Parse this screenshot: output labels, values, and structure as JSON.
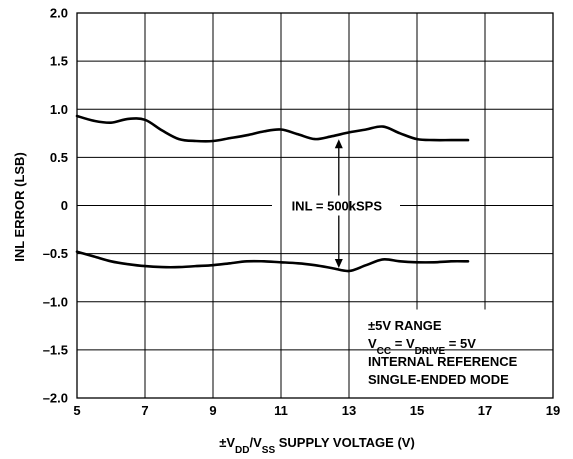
{
  "chart_data": {
    "type": "line",
    "xlabel": {
      "pre": "±V",
      "sub1": "DD",
      "mid": "/V",
      "sub2": "SS",
      "post": " SUPPLY VOLTAGE (V)"
    },
    "ylabel": "INL ERROR (LSB)",
    "xlim": [
      5,
      19
    ],
    "ylim": [
      -2.0,
      2.0
    ],
    "x_ticks": [
      5,
      7,
      9,
      11,
      13,
      15,
      17,
      19
    ],
    "y_ticks": [
      2.0,
      1.5,
      1.0,
      0.5,
      0,
      -0.5,
      -1.0,
      -1.5,
      -2.0
    ],
    "y_tick_labels": [
      "2.0",
      "1.5",
      "1.0",
      "0.5",
      "0",
      "–0.5",
      "–1.0",
      "–1.5",
      "–2.0"
    ],
    "grid": true,
    "series": [
      {
        "x": [
          5,
          5.5,
          6,
          6.5,
          7,
          7.5,
          8,
          8.5,
          9,
          9.5,
          10,
          10.5,
          11,
          11.5,
          12,
          12.5,
          13,
          13.5,
          14,
          14.5,
          15,
          15.5,
          16,
          16.5
        ],
        "values": [
          0.93,
          0.88,
          0.86,
          0.9,
          0.89,
          0.78,
          0.69,
          0.67,
          0.67,
          0.7,
          0.73,
          0.77,
          0.79,
          0.74,
          0.69,
          0.72,
          0.76,
          0.79,
          0.82,
          0.75,
          0.69,
          0.68,
          0.68,
          0.68
        ]
      },
      {
        "x": [
          5,
          5.5,
          6,
          6.5,
          7,
          7.5,
          8,
          8.5,
          9,
          9.5,
          10,
          10.5,
          11,
          11.5,
          12,
          12.5,
          13,
          13.5,
          14,
          14.5,
          15,
          15.5,
          16,
          16.5
        ],
        "values": [
          -0.48,
          -0.53,
          -0.58,
          -0.61,
          -0.63,
          -0.64,
          -0.64,
          -0.63,
          -0.62,
          -0.6,
          -0.58,
          -0.58,
          -0.59,
          -0.6,
          -0.62,
          -0.65,
          -0.68,
          -0.62,
          -0.56,
          -0.58,
          -0.59,
          -0.59,
          -0.58,
          -0.58
        ]
      }
    ],
    "annotation": {
      "label": "INL = 500kSPS",
      "arrow_x": 12.7,
      "arrow_from": 0.72,
      "arrow_to": -0.68,
      "label_y": 0
    },
    "conditions": {
      "line1": "±5V RANGE",
      "line2": {
        "v1": "V",
        "s1": "CC",
        "mid": " = V",
        "s2": "DRIVE",
        "post": " = 5V"
      },
      "line3": "INTERNAL REFERENCE",
      "line4": "SINGLE-ENDED MODE"
    }
  }
}
